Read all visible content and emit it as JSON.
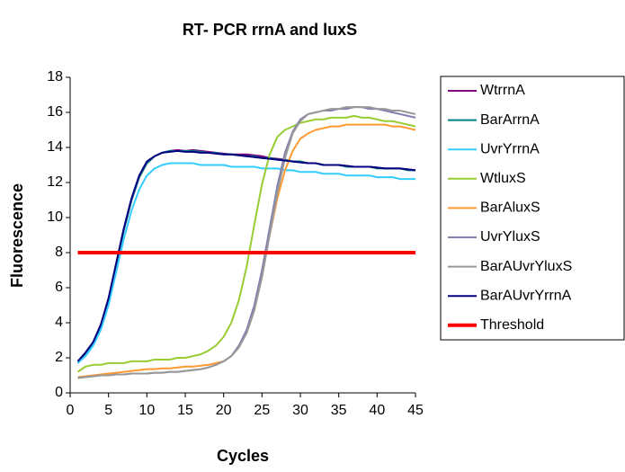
{
  "chart_data": {
    "type": "line",
    "title": "RT- PCR rrnA and luxS",
    "xlabel": "Cycles",
    "ylabel": "Fluorescence",
    "x": [
      1,
      2,
      3,
      4,
      5,
      6,
      7,
      8,
      9,
      10,
      11,
      12,
      13,
      14,
      15,
      16,
      17,
      18,
      19,
      20,
      21,
      22,
      23,
      24,
      25,
      26,
      27,
      28,
      29,
      30,
      31,
      32,
      33,
      34,
      35,
      36,
      37,
      38,
      39,
      40,
      41,
      42,
      43,
      44,
      45
    ],
    "xlim": [
      0,
      45
    ],
    "xticks": [
      0,
      5,
      10,
      15,
      20,
      25,
      30,
      35,
      40,
      45
    ],
    "ylim": [
      0,
      18
    ],
    "yticks": [
      0,
      2,
      4,
      6,
      8,
      10,
      12,
      14,
      16,
      18
    ],
    "grid": false,
    "legend": "right",
    "series": [
      {
        "name": "WtrrnA",
        "color": "#800080",
        "width": 2,
        "values": [
          1.7,
          2.2,
          2.8,
          3.8,
          5.3,
          7.3,
          9.3,
          11.0,
          12.3,
          13.1,
          13.5,
          13.7,
          13.8,
          13.85,
          13.8,
          13.85,
          13.8,
          13.75,
          13.7,
          13.65,
          13.6,
          13.6,
          13.6,
          13.55,
          13.5,
          13.4,
          13.35,
          13.3,
          13.2,
          13.2,
          13.1,
          13.1,
          13.0,
          13.0,
          13.0,
          12.95,
          12.9,
          12.9,
          12.9,
          12.85,
          12.8,
          12.8,
          12.8,
          12.75,
          12.7
        ]
      },
      {
        "name": "BarArrnA",
        "color": "#008080",
        "width": 2,
        "values": [
          1.7,
          2.2,
          2.8,
          3.8,
          5.3,
          7.3,
          9.3,
          11.0,
          12.3,
          13.1,
          13.5,
          13.7,
          13.8,
          13.8,
          13.8,
          13.8,
          13.75,
          13.7,
          13.7,
          13.6,
          13.6,
          13.55,
          13.5,
          13.5,
          13.4,
          13.4,
          13.3,
          13.3,
          13.2,
          13.2,
          13.1,
          13.1,
          13.0,
          13.0,
          13.0,
          12.9,
          12.9,
          12.9,
          12.9,
          12.8,
          12.8,
          12.8,
          12.8,
          12.7,
          12.7
        ]
      },
      {
        "name": "UvrYrrnA",
        "color": "#33ccff",
        "width": 2,
        "values": [
          1.7,
          2.1,
          2.7,
          3.6,
          5.0,
          6.9,
          8.8,
          10.4,
          11.6,
          12.4,
          12.8,
          13.0,
          13.1,
          13.1,
          13.1,
          13.1,
          13.0,
          13.0,
          13.0,
          13.0,
          12.9,
          12.9,
          12.9,
          12.9,
          12.8,
          12.8,
          12.8,
          12.7,
          12.7,
          12.6,
          12.6,
          12.6,
          12.5,
          12.5,
          12.5,
          12.4,
          12.4,
          12.4,
          12.4,
          12.3,
          12.3,
          12.3,
          12.2,
          12.2,
          12.2
        ]
      },
      {
        "name": "WtluxS",
        "color": "#99cc33",
        "width": 2,
        "values": [
          1.2,
          1.5,
          1.6,
          1.6,
          1.7,
          1.7,
          1.7,
          1.8,
          1.8,
          1.8,
          1.9,
          1.9,
          1.9,
          2.0,
          2.0,
          2.1,
          2.2,
          2.4,
          2.7,
          3.2,
          4.0,
          5.3,
          7.2,
          9.6,
          11.9,
          13.6,
          14.6,
          15.0,
          15.2,
          15.4,
          15.5,
          15.6,
          15.6,
          15.7,
          15.7,
          15.7,
          15.8,
          15.7,
          15.7,
          15.6,
          15.5,
          15.5,
          15.4,
          15.3,
          15.2
        ]
      },
      {
        "name": "BarAluxS",
        "color": "#ff9933",
        "width": 2,
        "values": [
          0.9,
          0.95,
          1.0,
          1.05,
          1.1,
          1.15,
          1.2,
          1.25,
          1.3,
          1.35,
          1.35,
          1.4,
          1.4,
          1.45,
          1.5,
          1.5,
          1.55,
          1.6,
          1.7,
          1.8,
          2.1,
          2.6,
          3.5,
          4.9,
          6.8,
          9.0,
          11.1,
          12.7,
          13.8,
          14.5,
          14.8,
          15.0,
          15.1,
          15.2,
          15.2,
          15.3,
          15.3,
          15.3,
          15.3,
          15.3,
          15.3,
          15.2,
          15.2,
          15.1,
          15.0
        ]
      },
      {
        "name": "UvrYluxS",
        "color": "#8080b0",
        "width": 2,
        "values": [
          0.85,
          0.9,
          0.95,
          1.0,
          1.0,
          1.05,
          1.05,
          1.1,
          1.1,
          1.1,
          1.15,
          1.15,
          1.2,
          1.2,
          1.25,
          1.3,
          1.35,
          1.45,
          1.6,
          1.8,
          2.1,
          2.7,
          3.6,
          5.0,
          7.0,
          9.4,
          11.8,
          13.7,
          14.9,
          15.6,
          15.9,
          16.0,
          16.1,
          16.1,
          16.2,
          16.2,
          16.3,
          16.3,
          16.2,
          16.2,
          16.1,
          16.0,
          15.9,
          15.8,
          15.7
        ]
      },
      {
        "name": "BarAUvrYluxS",
        "color": "#999999",
        "width": 2,
        "values": [
          0.85,
          0.9,
          0.95,
          1.0,
          1.0,
          1.05,
          1.05,
          1.1,
          1.1,
          1.1,
          1.15,
          1.15,
          1.2,
          1.2,
          1.25,
          1.3,
          1.35,
          1.45,
          1.6,
          1.8,
          2.1,
          2.6,
          3.4,
          4.7,
          6.6,
          9.0,
          11.4,
          13.4,
          14.8,
          15.5,
          15.9,
          16.0,
          16.1,
          16.2,
          16.2,
          16.3,
          16.3,
          16.3,
          16.3,
          16.2,
          16.2,
          16.1,
          16.1,
          16.0,
          15.9
        ]
      },
      {
        "name": "BarAUvrYrrnA",
        "color": "#000080",
        "width": 2,
        "values": [
          1.8,
          2.3,
          2.9,
          3.9,
          5.4,
          7.4,
          9.4,
          11.1,
          12.4,
          13.2,
          13.5,
          13.7,
          13.75,
          13.8,
          13.75,
          13.75,
          13.7,
          13.7,
          13.65,
          13.6,
          13.6,
          13.55,
          13.5,
          13.45,
          13.4,
          13.35,
          13.3,
          13.25,
          13.2,
          13.15,
          13.1,
          13.1,
          13.0,
          13.0,
          13.0,
          12.95,
          12.9,
          12.9,
          12.9,
          12.85,
          12.8,
          12.8,
          12.8,
          12.75,
          12.7
        ]
      },
      {
        "name": "Threshold",
        "color": "#ff0000",
        "width": 4,
        "values": [
          8,
          8,
          8,
          8,
          8,
          8,
          8,
          8,
          8,
          8,
          8,
          8,
          8,
          8,
          8,
          8,
          8,
          8,
          8,
          8,
          8,
          8,
          8,
          8,
          8,
          8,
          8,
          8,
          8,
          8,
          8,
          8,
          8,
          8,
          8,
          8,
          8,
          8,
          8,
          8,
          8,
          8,
          8,
          8,
          8
        ]
      }
    ]
  }
}
